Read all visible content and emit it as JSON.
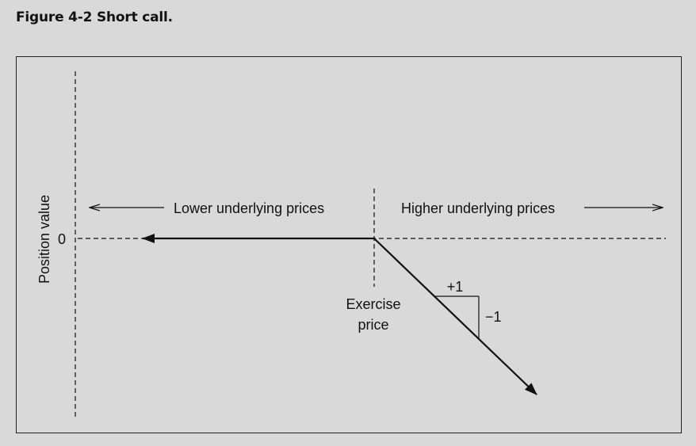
{
  "figure": {
    "title": "Figure 4-2  Short call."
  },
  "diagram": {
    "y_axis_label": "Position value",
    "zero_label": "0",
    "left_direction_label": "Lower underlying prices",
    "right_direction_label": "Higher underlying prices",
    "exercise_label_line1": "Exercise",
    "exercise_label_line2": "price",
    "slope_run_label": "+1",
    "slope_rise_label": "−1"
  }
}
